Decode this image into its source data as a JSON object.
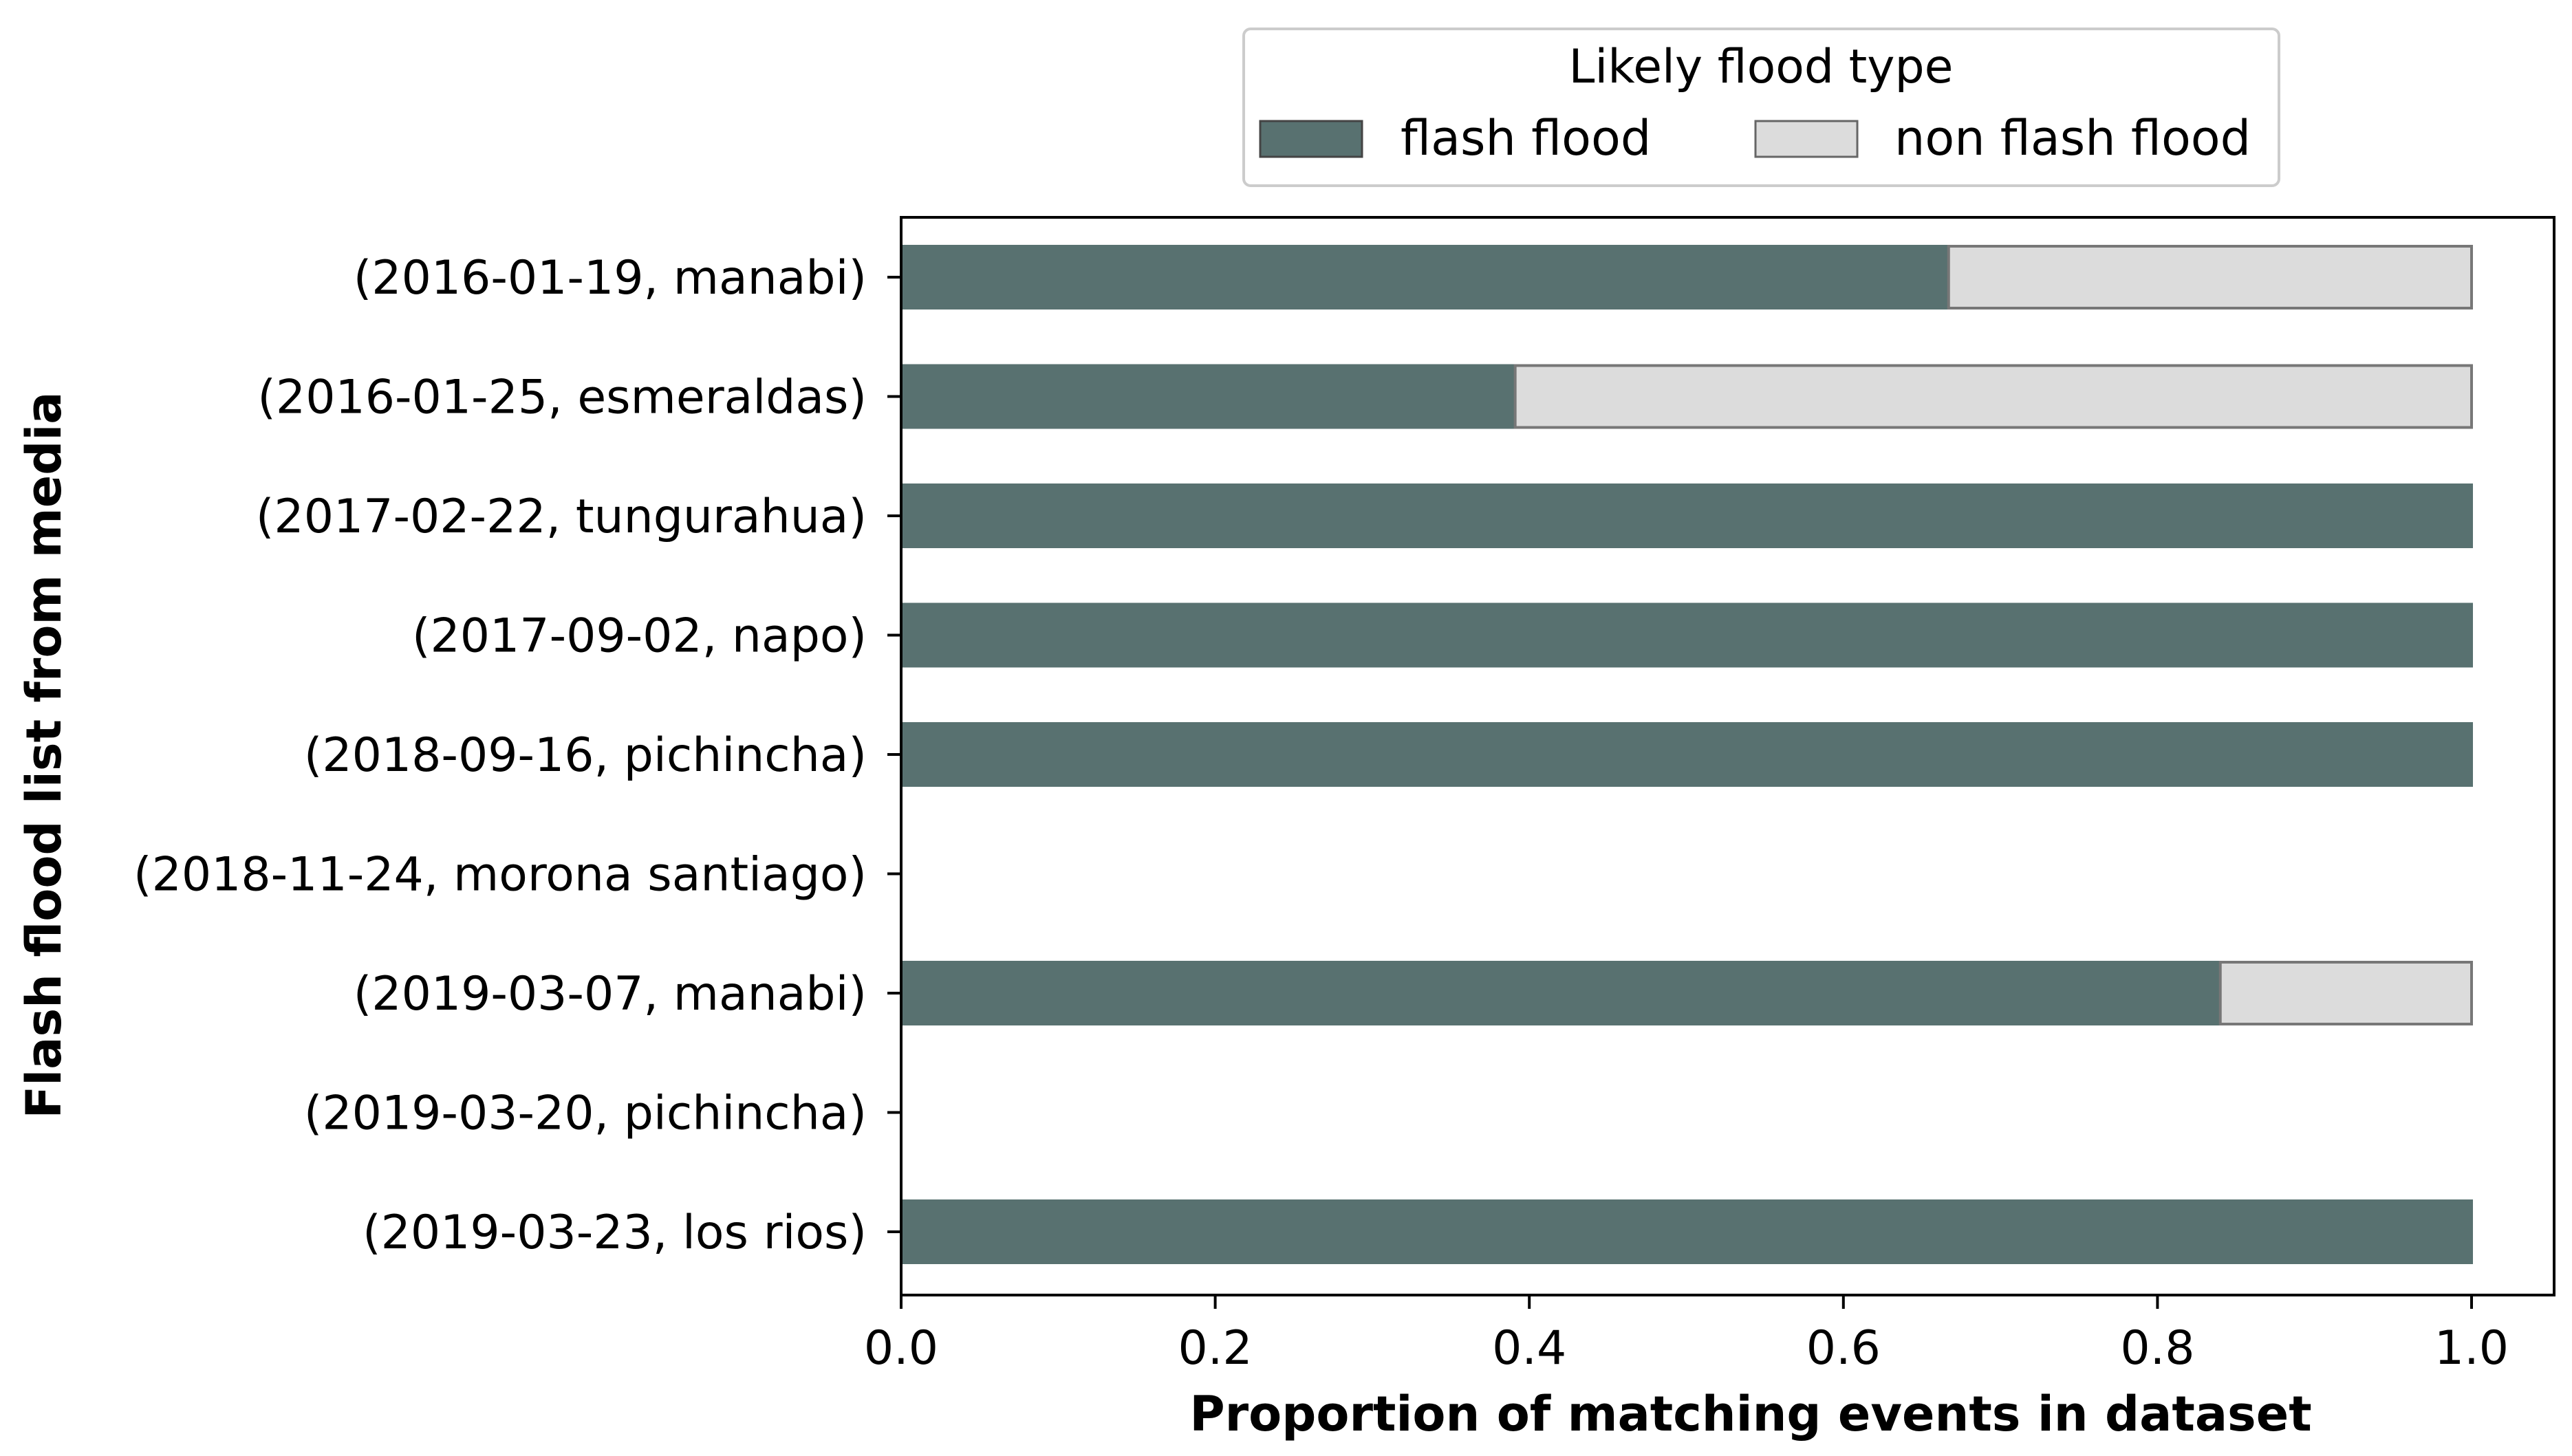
{
  "chart_data": {
    "type": "bar",
    "orientation": "horizontal",
    "stacked": true,
    "categories": [
      "(2016-01-19, manabi)",
      "(2016-01-25, esmeraldas)",
      "(2017-02-22, tungurahua)",
      "(2017-09-02, napo)",
      "(2018-09-16, pichincha)",
      "(2018-11-24, morona santiago)",
      "(2019-03-07, manabi)",
      "(2019-03-20, pichincha)",
      "(2019-03-23, los rios)"
    ],
    "series": [
      {
        "name": "flash flood",
        "color": "#587170",
        "values": [
          0.667,
          0.391,
          1.0,
          1.0,
          1.0,
          0,
          0.84,
          0,
          1.0
        ]
      },
      {
        "name": "non flash flood",
        "color": "#dcdcdc",
        "values": [
          0.333,
          0.609,
          0,
          0,
          0,
          0,
          0.16,
          0,
          0
        ]
      }
    ],
    "xlabel": "Proportion of matching events in dataset",
    "ylabel": "Flash flood list from media",
    "xlim": [
      0.0,
      1.05
    ],
    "xticks": [
      "0.0",
      "0.2",
      "0.4",
      "0.6",
      "0.8",
      "1.0"
    ],
    "grid": false,
    "legend": {
      "title": "Likely flood type",
      "placement": "top-center, above plot",
      "entries": [
        "flash flood",
        "non flash flood"
      ]
    }
  }
}
